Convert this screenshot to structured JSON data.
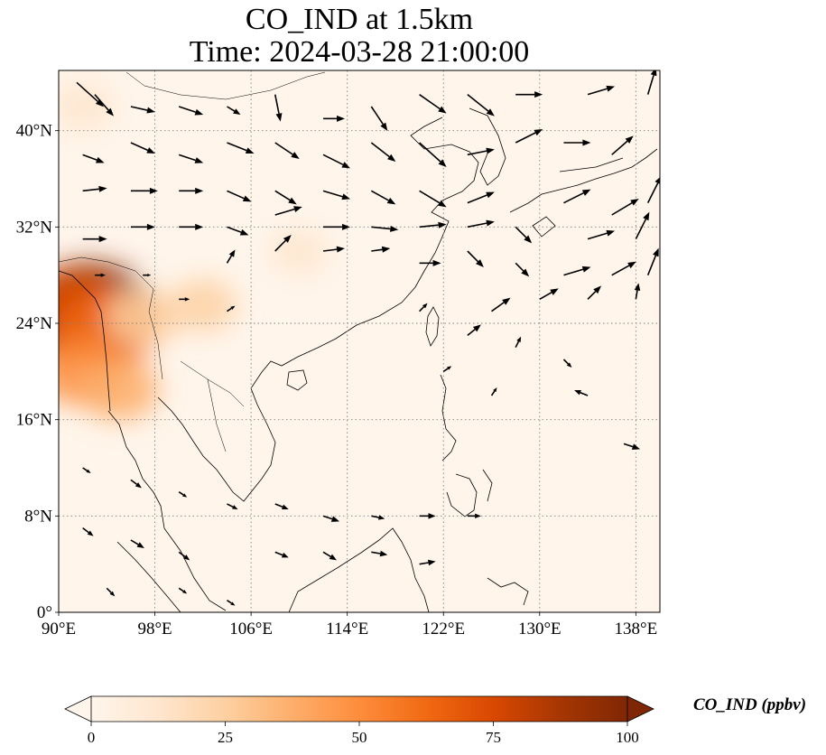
{
  "title": {
    "line1": "CO_IND at 1.5km",
    "line2": "Time: 2024-03-28 21:00:00"
  },
  "map": {
    "lon_range": [
      90,
      140
    ],
    "lat_range": [
      0,
      45
    ],
    "lon_ticks": [
      {
        "value": 90,
        "label": "90°E"
      },
      {
        "value": 98,
        "label": "98°E"
      },
      {
        "value": 106,
        "label": "106°E"
      },
      {
        "value": 114,
        "label": "114°E"
      },
      {
        "value": 122,
        "label": "122°E"
      },
      {
        "value": 130,
        "label": "130°E"
      },
      {
        "value": 138,
        "label": "138°E"
      }
    ],
    "lat_ticks": [
      {
        "value": 0,
        "label": "0°"
      },
      {
        "value": 8,
        "label": "8°N"
      },
      {
        "value": 16,
        "label": "16°N"
      },
      {
        "value": 24,
        "label": "24°N"
      },
      {
        "value": 32,
        "label": "32°N"
      },
      {
        "value": 40,
        "label": "40°N"
      }
    ],
    "gridlines": true,
    "concentration_hotspots": [
      {
        "lon": 92.5,
        "lat": 25.0,
        "value": 95
      },
      {
        "lon": 91.0,
        "lat": 24.5,
        "value": 80
      },
      {
        "lon": 94.0,
        "lat": 23.5,
        "value": 60
      },
      {
        "lon": 92.0,
        "lat": 20.0,
        "value": 45
      },
      {
        "lon": 95.0,
        "lat": 18.5,
        "value": 35
      },
      {
        "lon": 97.0,
        "lat": 24.5,
        "value": 30
      },
      {
        "lon": 102.0,
        "lat": 25.5,
        "value": 20
      },
      {
        "lon": 92.0,
        "lat": 42.0,
        "value": 15
      },
      {
        "lon": 110.0,
        "lat": 30.0,
        "value": 10
      }
    ]
  },
  "wind_vectors": [
    {
      "lon": 91.5,
      "lat": 44.0,
      "u": 1.0,
      "v": -0.9
    },
    {
      "lon": 93,
      "lat": 43,
      "u": 0.7,
      "v": -0.8
    },
    {
      "lon": 96,
      "lat": 42,
      "u": 0.9,
      "v": -0.2
    },
    {
      "lon": 100,
      "lat": 42,
      "u": 0.9,
      "v": -0.3
    },
    {
      "lon": 104,
      "lat": 42,
      "u": 0.5,
      "v": -0.3
    },
    {
      "lon": 108,
      "lat": 43,
      "u": 0.2,
      "v": -1.0
    },
    {
      "lon": 112,
      "lat": 41,
      "u": 0.8,
      "v": 0.0
    },
    {
      "lon": 116,
      "lat": 42,
      "u": 0.6,
      "v": -0.9
    },
    {
      "lon": 120,
      "lat": 43,
      "u": 1.0,
      "v": -0.7
    },
    {
      "lon": 124,
      "lat": 43,
      "u": 1.0,
      "v": -0.8
    },
    {
      "lon": 128,
      "lat": 43,
      "u": 1.0,
      "v": 0.0
    },
    {
      "lon": 134,
      "lat": 43,
      "u": 1.0,
      "v": 0.3
    },
    {
      "lon": 139,
      "lat": 43,
      "u": 0.3,
      "v": 1.0
    },
    {
      "lon": 92,
      "lat": 38,
      "u": 0.8,
      "v": -0.3
    },
    {
      "lon": 96,
      "lat": 39,
      "u": 0.9,
      "v": -0.4
    },
    {
      "lon": 100,
      "lat": 38,
      "u": 0.9,
      "v": -0.3
    },
    {
      "lon": 104,
      "lat": 39,
      "u": 1.0,
      "v": -0.4
    },
    {
      "lon": 108,
      "lat": 39,
      "u": 0.9,
      "v": -0.6
    },
    {
      "lon": 112,
      "lat": 38,
      "u": 1.0,
      "v": -0.5
    },
    {
      "lon": 116,
      "lat": 39,
      "u": 0.9,
      "v": -0.7
    },
    {
      "lon": 120,
      "lat": 39,
      "u": 1.0,
      "v": -0.9
    },
    {
      "lon": 124,
      "lat": 38,
      "u": 1.0,
      "v": 0.2
    },
    {
      "lon": 128,
      "lat": 39,
      "u": 1.0,
      "v": 0.5
    },
    {
      "lon": 132,
      "lat": 39,
      "u": 1.0,
      "v": 0.0
    },
    {
      "lon": 136,
      "lat": 38,
      "u": 0.8,
      "v": 0.7
    },
    {
      "lon": 92,
      "lat": 35,
      "u": 0.9,
      "v": 0.1
    },
    {
      "lon": 96,
      "lat": 35,
      "u": 1.0,
      "v": 0.0
    },
    {
      "lon": 100,
      "lat": 35,
      "u": 0.9,
      "v": 0.0
    },
    {
      "lon": 104,
      "lat": 35,
      "u": 0.9,
      "v": -0.4
    },
    {
      "lon": 108,
      "lat": 35,
      "u": 0.8,
      "v": -0.5
    },
    {
      "lon": 112,
      "lat": 35,
      "u": 1.0,
      "v": -0.3
    },
    {
      "lon": 116,
      "lat": 35,
      "u": 0.9,
      "v": -0.5
    },
    {
      "lon": 120,
      "lat": 35,
      "u": 1.0,
      "v": -0.6
    },
    {
      "lon": 124,
      "lat": 34,
      "u": 1.0,
      "v": 0.4
    },
    {
      "lon": 132,
      "lat": 34,
      "u": 1.0,
      "v": 0.5
    },
    {
      "lon": 136,
      "lat": 33,
      "u": 1.0,
      "v": 0.6
    },
    {
      "lon": 139,
      "lat": 34,
      "u": 0.5,
      "v": 1.0
    },
    {
      "lon": 92,
      "lat": 31,
      "u": 0.9,
      "v": 0.0
    },
    {
      "lon": 96,
      "lat": 32,
      "u": 0.9,
      "v": 0.0
    },
    {
      "lon": 100,
      "lat": 32,
      "u": 0.9,
      "v": 0.0
    },
    {
      "lon": 104,
      "lat": 32,
      "u": 0.8,
      "v": -0.3
    },
    {
      "lon": 108,
      "lat": 33,
      "u": 1.0,
      "v": 0.3
    },
    {
      "lon": 112,
      "lat": 32,
      "u": 1.0,
      "v": 0.0
    },
    {
      "lon": 116,
      "lat": 32,
      "u": 1.0,
      "v": -0.1
    },
    {
      "lon": 120,
      "lat": 32,
      "u": 1.0,
      "v": 0.1
    },
    {
      "lon": 124,
      "lat": 32,
      "u": 1.0,
      "v": 0.2
    },
    {
      "lon": 128,
      "lat": 32,
      "u": 0.6,
      "v": -0.6
    },
    {
      "lon": 134,
      "lat": 31,
      "u": 1.0,
      "v": 0.3
    },
    {
      "lon": 138,
      "lat": 31,
      "u": 0.5,
      "v": 1.0
    },
    {
      "lon": 93,
      "lat": 28,
      "u": 0.4,
      "v": 0.0
    },
    {
      "lon": 97,
      "lat": 28,
      "u": 0.3,
      "v": 0.0
    },
    {
      "lon": 104,
      "lat": 29,
      "u": 0.3,
      "v": 0.5
    },
    {
      "lon": 108,
      "lat": 30,
      "u": 0.6,
      "v": 0.6
    },
    {
      "lon": 112,
      "lat": 30,
      "u": 0.8,
      "v": 0.1
    },
    {
      "lon": 116,
      "lat": 30,
      "u": 0.7,
      "v": 0.1
    },
    {
      "lon": 120,
      "lat": 29,
      "u": 0.8,
      "v": 0.0
    },
    {
      "lon": 124,
      "lat": 30,
      "u": 0.6,
      "v": -0.6
    },
    {
      "lon": 128,
      "lat": 29,
      "u": 0.5,
      "v": -0.5
    },
    {
      "lon": 132,
      "lat": 28,
      "u": 1.0,
      "v": 0.3
    },
    {
      "lon": 136,
      "lat": 28,
      "u": 0.9,
      "v": 0.5
    },
    {
      "lon": 139,
      "lat": 28,
      "u": 0.4,
      "v": 1.0
    },
    {
      "lon": 100,
      "lat": 26,
      "u": 0.4,
      "v": 0.0
    },
    {
      "lon": 104,
      "lat": 25,
      "u": 0.3,
      "v": 0.2
    },
    {
      "lon": 120,
      "lat": 25,
      "u": 0.3,
      "v": 0.3
    },
    {
      "lon": 126,
      "lat": 25,
      "u": 0.7,
      "v": 0.5
    },
    {
      "lon": 130,
      "lat": 26,
      "u": 0.7,
      "v": 0.4
    },
    {
      "lon": 134,
      "lat": 26,
      "u": 0.5,
      "v": 0.5
    },
    {
      "lon": 138,
      "lat": 26,
      "u": 0.1,
      "v": 0.6
    },
    {
      "lon": 124,
      "lat": 23,
      "u": 0.5,
      "v": 0.4
    },
    {
      "lon": 128,
      "lat": 22,
      "u": 0.2,
      "v": 0.4
    },
    {
      "lon": 132,
      "lat": 21,
      "u": 0.3,
      "v": -0.3
    },
    {
      "lon": 122,
      "lat": 20,
      "u": 0.3,
      "v": 0.2
    },
    {
      "lon": 126,
      "lat": 18,
      "u": 0.2,
      "v": 0.3
    },
    {
      "lon": 134,
      "lat": 18,
      "u": -0.5,
      "v": 0.2
    },
    {
      "lon": 137,
      "lat": 14,
      "u": 0.6,
      "v": -0.2
    },
    {
      "lon": 92,
      "lat": 12,
      "u": 0.3,
      "v": -0.2
    },
    {
      "lon": 96,
      "lat": 11,
      "u": 0.4,
      "v": -0.3
    },
    {
      "lon": 100,
      "lat": 10,
      "u": 0.3,
      "v": -0.2
    },
    {
      "lon": 104,
      "lat": 9,
      "u": 0.4,
      "v": -0.2
    },
    {
      "lon": 108,
      "lat": 9,
      "u": 0.5,
      "v": -0.2
    },
    {
      "lon": 112,
      "lat": 8,
      "u": 0.6,
      "v": -0.2
    },
    {
      "lon": 116,
      "lat": 8,
      "u": 0.5,
      "v": -0.1
    },
    {
      "lon": 120,
      "lat": 8,
      "u": 0.6,
      "v": 0.0
    },
    {
      "lon": 124,
      "lat": 8,
      "u": 0.5,
      "v": 0.0
    },
    {
      "lon": 92,
      "lat": 7,
      "u": 0.4,
      "v": -0.3
    },
    {
      "lon": 96,
      "lat": 6,
      "u": 0.5,
      "v": -0.3
    },
    {
      "lon": 100,
      "lat": 5,
      "u": 0.4,
      "v": -0.3
    },
    {
      "lon": 108,
      "lat": 5,
      "u": 0.5,
      "v": -0.2
    },
    {
      "lon": 112,
      "lat": 5,
      "u": 0.5,
      "v": -0.3
    },
    {
      "lon": 116,
      "lat": 5,
      "u": 0.6,
      "v": -0.1
    },
    {
      "lon": 120,
      "lat": 4,
      "u": 0.6,
      "v": 0.1
    },
    {
      "lon": 94,
      "lat": 2,
      "u": 0.3,
      "v": -0.3
    },
    {
      "lon": 100,
      "lat": 2,
      "u": 0.3,
      "v": -0.2
    },
    {
      "lon": 104,
      "lat": 1,
      "u": 0.3,
      "v": -0.2
    }
  ],
  "colorbar": {
    "label": "CO_IND (ppbv)",
    "min": 0,
    "max": 100,
    "extend": "both",
    "ticks": [
      {
        "value": 0,
        "label": "0"
      },
      {
        "value": 25,
        "label": "25"
      },
      {
        "value": 50,
        "label": "50"
      },
      {
        "value": 75,
        "label": "75"
      },
      {
        "value": 100,
        "label": "100"
      }
    ],
    "colors": [
      "#fff5eb",
      "#fee6ce",
      "#fdd0a2",
      "#fdae6b",
      "#fd8d3c",
      "#f16913",
      "#d94801",
      "#a63603",
      "#7f2704"
    ]
  }
}
